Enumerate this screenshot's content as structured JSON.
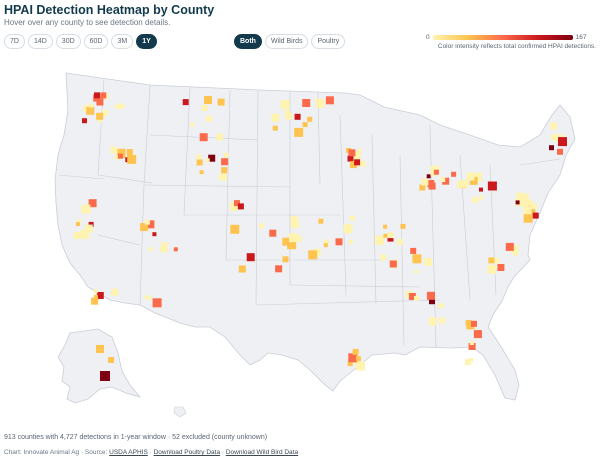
{
  "header": {
    "title": "HPAI Detection Heatmap by County",
    "subtitle": "Hover over any county to see detection details."
  },
  "time_ranges": [
    "7D",
    "14D",
    "30D",
    "60D",
    "3M",
    "1Y"
  ],
  "selected_time_range": "1Y",
  "bird_types": [
    "Both",
    "Wild Birds",
    "Poultry"
  ],
  "selected_bird_type": "Both",
  "legend": {
    "min": "0",
    "max": "167",
    "note": "Color intensity reflects total confirmed HPAI detections.",
    "colors": [
      "#fff3b0",
      "#fec44f",
      "#fb6a4a",
      "#cb181d",
      "#7f0010"
    ]
  },
  "footer": {
    "summary": "913 counties with 4,727 detections in 1-year window · 52 excluded (county unknown)",
    "credit_prefix": "Chart: Innovate Animal Ag · Source: ",
    "source_link": "USDA APHIS",
    "sep": " · ",
    "poultry_link": "Download Poultry Data",
    "wild_link": "Download Wild Bird Data"
  },
  "map_style": {
    "land": "#eef0f4",
    "border": "#c9ced6"
  }
}
